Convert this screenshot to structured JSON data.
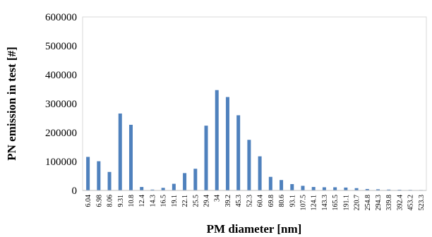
{
  "chart_data": {
    "type": "bar",
    "title": "",
    "xlabel": "PM diameter [nm]",
    "ylabel": "PN emission in test [#]",
    "ylim": [
      0,
      600000
    ],
    "yticks": [
      "0",
      "100000",
      "200000",
      "300000",
      "400000",
      "500000",
      "600000"
    ],
    "grid": false,
    "legend": "none",
    "bar_color": "#4f81bd",
    "categories": [
      "6.04",
      "6.98",
      "8.06",
      "9.31",
      "10.8",
      "12.4",
      "14.3",
      "16.5",
      "19.1",
      "22.1",
      "25.5",
      "29.4",
      "34",
      "39.2",
      "45.3",
      "52.3",
      "60.4",
      "69.8",
      "80.6",
      "93.1",
      "107.5",
      "124.1",
      "143.3",
      "165.5",
      "191.1",
      "220.7",
      "254.8",
      "294.3",
      "339.8",
      "392.4",
      "453.2",
      "523.3"
    ],
    "tick_labels": [
      "6.04",
      "6.98",
      "8.06",
      "9.31",
      "10.8",
      "12.4",
      "14.3",
      "16.5",
      "19.1",
      "22.1",
      "25.5",
      "29.4",
      "34",
      "39.2",
      "45.3",
      "52.3",
      "60.4",
      "69.8",
      "80.6",
      "93.1",
      "107.5",
      "124.1",
      "143.3",
      "165.5",
      "191.1",
      "220.7",
      "254.8",
      "294.3",
      "339.8",
      "392.4",
      "453.2",
      "523.3"
    ],
    "values": [
      116000,
      101000,
      64000,
      266000,
      227000,
      12000,
      3000,
      9000,
      23000,
      60000,
      75000,
      224000,
      347000,
      323000,
      260000,
      175000,
      118000,
      47000,
      36000,
      22000,
      16000,
      12000,
      11000,
      11000,
      10000,
      8000,
      5000,
      4000,
      3000,
      2500,
      2000,
      1500
    ]
  }
}
